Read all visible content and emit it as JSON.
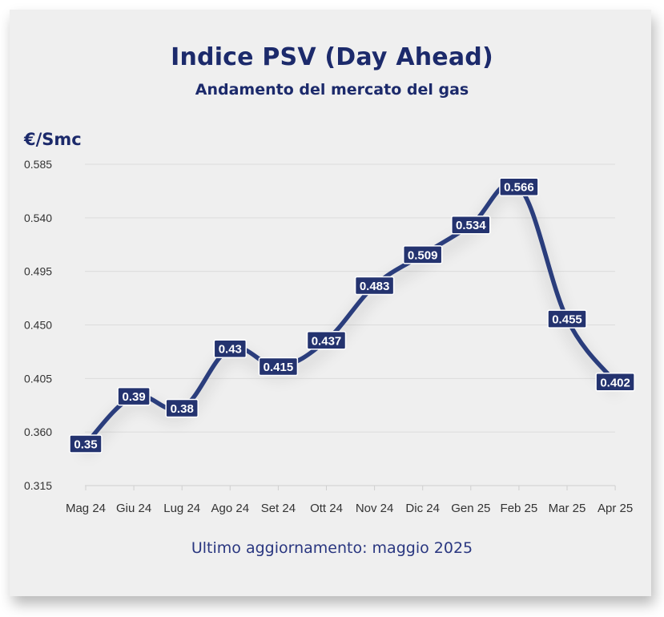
{
  "colors": {
    "line": "#2c3d7c",
    "label_bg": "#24336f",
    "title": "#1c2a6b",
    "grid": "#dcdcdc"
  },
  "chart_data": {
    "type": "line",
    "title": "Indice PSV (Day Ahead)",
    "subtitle": "Andamento del mercato del gas",
    "ylabel": "€/Smc",
    "xlabel": "",
    "categories": [
      "Mag 24",
      "Giu 24",
      "Lug 24",
      "Ago 24",
      "Set 24",
      "Ott 24",
      "Nov 24",
      "Dic 24",
      "Gen 25",
      "Feb 25",
      "Mar 25",
      "Apr 25"
    ],
    "series": [
      {
        "values": [
          0.35,
          0.39,
          0.38,
          0.43,
          0.415,
          0.437,
          0.483,
          0.509,
          0.534,
          0.566,
          0.455,
          0.402
        ],
        "labels": [
          "0.35",
          "0.39",
          "0.38",
          "0.43",
          "0.415",
          "0.437",
          "0.483",
          "0.509",
          "0.534",
          "0.566",
          "0.455",
          "0.402"
        ]
      }
    ],
    "ylim": [
      0.315,
      0.585
    ],
    "yticks": [
      "0.585",
      "0.540",
      "0.495",
      "0.450",
      "0.405",
      "0.360",
      "0.315"
    ],
    "grid": true,
    "legend": "none",
    "footer": "Ultimo aggiornamento: maggio 2025"
  }
}
